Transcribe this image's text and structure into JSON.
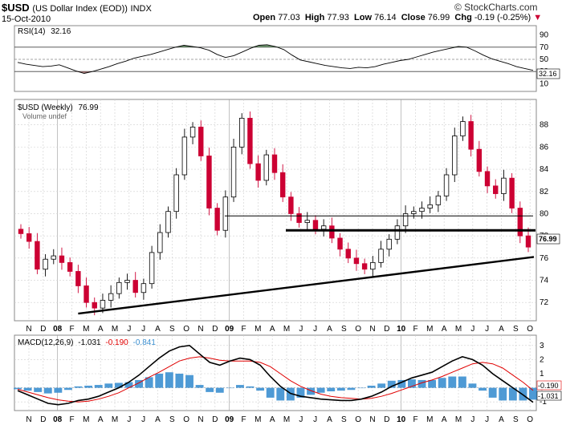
{
  "header": {
    "symbol": "$USD",
    "description": "(US Dollar Index (EOD))",
    "exchange": "INDX",
    "date": "15-Oct-2010",
    "open_label": "Open",
    "open": "77.03",
    "high_label": "High",
    "high": "77.93",
    "low_label": "Low",
    "low": "76.14",
    "close_label": "Close",
    "close": "76.99",
    "chg_label": "Chg",
    "chg": "-0.19 (-0.25%)",
    "brand": "© StockCharts.com"
  },
  "rsi_panel": {
    "label": "RSI(14)",
    "value": "32.16",
    "ticks": [
      "90",
      "70",
      "50",
      "30",
      "10"
    ]
  },
  "price_panel": {
    "label": "$USD (Weekly)",
    "value": "76.99",
    "volume_label": "Volume undef",
    "ticks": [
      "88",
      "86",
      "84",
      "82",
      "80",
      "78",
      "76",
      "74",
      "72"
    ]
  },
  "macd_panel": {
    "label": "MACD(12,26,9)",
    "macd": "-1.031",
    "signal": "-0.190",
    "histogram": "-0.841",
    "ticks": [
      "3",
      "2",
      "1",
      "0",
      "-1"
    ],
    "macd_tag": "-1.031",
    "signal_tag": "-0.190"
  },
  "x_axis_labels": [
    "N",
    "D",
    "08",
    "F",
    "M",
    "A",
    "M",
    "J",
    "J",
    "A",
    "S",
    "O",
    "N",
    "D",
    "09",
    "F",
    "M",
    "A",
    "M",
    "J",
    "J",
    "A",
    "S",
    "O",
    "N",
    "D",
    "10",
    "F",
    "M",
    "A",
    "M",
    "J",
    "J",
    "A",
    "S",
    "O"
  ],
  "colors": {
    "up": "#000000",
    "down": "#cc0033",
    "grid": "#cfcfcf",
    "histogram": "#3b8fd0",
    "signal": "#e00000",
    "rsi_hi_fill": "#4f7f4f",
    "rsi_lo_fill": "#a06060"
  },
  "chart_data": [
    {
      "type": "line",
      "name": "RSI(14)",
      "ylim": [
        0,
        100
      ],
      "reference_lines": [
        70,
        50,
        30
      ],
      "y": [
        45,
        42,
        40,
        38,
        39,
        41,
        36,
        31,
        27,
        30,
        34,
        38,
        43,
        47,
        52,
        55,
        58,
        62,
        66,
        70,
        73,
        71,
        69,
        65,
        58,
        53,
        56,
        62,
        68,
        73,
        74,
        71,
        66,
        57,
        49,
        46,
        43,
        40,
        38,
        36,
        35,
        37,
        36,
        38,
        42,
        45,
        48,
        50,
        54,
        58,
        62,
        65,
        68,
        71,
        70,
        64,
        57,
        51,
        47,
        43,
        38,
        35,
        32
      ]
    },
    {
      "type": "candlestick",
      "name": "$USD (Weekly)",
      "ylim": [
        70.5,
        90
      ],
      "support_line": {
        "from": [
          71,
          76.1
        ],
        "trend": "rising"
      },
      "horizontal_lines": [
        79.8,
        78.5
      ],
      "close": [
        78.2,
        77.5,
        75.0,
        75.9,
        76.2,
        75.6,
        74.8,
        73.5,
        72.0,
        71.5,
        72.2,
        72.8,
        73.8,
        74.0,
        72.9,
        73.7,
        76.5,
        78.3,
        80.2,
        83.5,
        86.9,
        87.8,
        85.2,
        80.5,
        78.5,
        81.5,
        86.0,
        88.6,
        84.5,
        83.0,
        85.3,
        83.7,
        81.5,
        80.0,
        79.2,
        79.4,
        78.6,
        78.9,
        77.8,
        76.8,
        76.0,
        75.5,
        75.0,
        75.6,
        76.8,
        77.7,
        78.9,
        80.0,
        80.2,
        80.5,
        80.8,
        81.6,
        83.5,
        87.0,
        88.3,
        85.8,
        83.8,
        82.5,
        81.8,
        83.2,
        80.5,
        78.0,
        76.99
      ]
    },
    {
      "type": "line",
      "name": "MACD(12,26,9)",
      "ylim": [
        -1.5,
        3.5
      ],
      "series": [
        {
          "name": "MACD",
          "y": [
            -0.2,
            -0.5,
            -0.8,
            -1.1,
            -1.2,
            -1.1,
            -0.9,
            -0.8,
            -0.6,
            -0.3,
            0.0,
            0.4,
            0.9,
            1.5,
            2.1,
            2.6,
            2.9,
            3.0,
            2.4,
            1.8,
            1.6,
            1.9,
            2.1,
            2.0,
            1.6,
            0.8,
            0.1,
            -0.4,
            -0.6,
            -0.7,
            -0.8,
            -0.85,
            -0.9,
            -0.9,
            -0.8,
            -0.6,
            -0.3,
            0.1,
            0.4,
            0.7,
            0.9,
            1.1,
            1.5,
            1.9,
            2.2,
            2.0,
            1.6,
            1.0,
            0.5,
            0.0,
            -0.5,
            -1.031
          ]
        },
        {
          "name": "Signal",
          "y": [
            -0.1,
            -0.3,
            -0.5,
            -0.7,
            -0.85,
            -0.95,
            -1.0,
            -0.95,
            -0.8,
            -0.6,
            -0.35,
            0.0,
            0.35,
            0.75,
            1.1,
            1.5,
            1.9,
            2.1,
            2.2,
            2.1,
            1.95,
            1.9,
            1.9,
            1.9,
            1.8,
            1.5,
            1.0,
            0.5,
            0.1,
            -0.2,
            -0.45,
            -0.6,
            -0.7,
            -0.75,
            -0.8,
            -0.75,
            -0.6,
            -0.4,
            -0.15,
            0.1,
            0.35,
            0.55,
            0.8,
            1.1,
            1.4,
            1.7,
            1.8,
            1.7,
            1.4,
            0.9,
            0.4,
            -0.19
          ]
        }
      ]
    }
  ]
}
